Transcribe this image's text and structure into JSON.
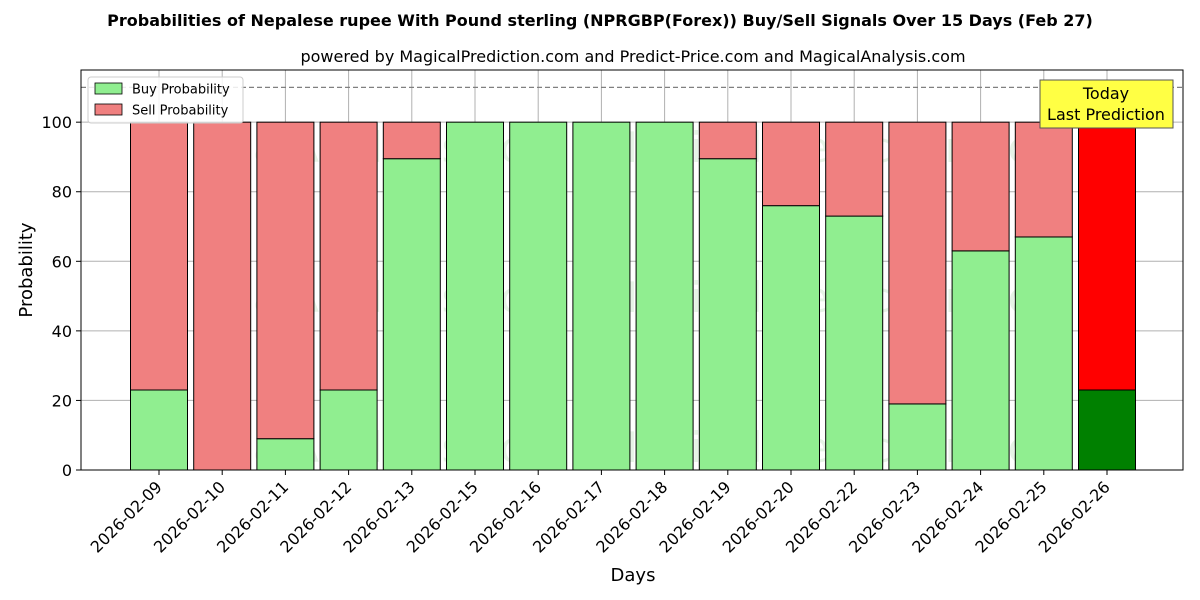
{
  "chart_data": {
    "type": "bar",
    "stacked": true,
    "title": "Probabilities of Nepalese rupee With Pound sterling (NPRGBP(Forex)) Buy/Sell Signals Over 15 Days (Feb 27)",
    "subtitle": "powered by MagicalPrediction.com and Predict-Price.com and MagicalAnalysis.com",
    "xlabel": "Days",
    "ylabel": "Probability",
    "ylim": [
      0,
      115
    ],
    "yticks": [
      0,
      20,
      40,
      60,
      80,
      100
    ],
    "grid": true,
    "legend_position": "top-left",
    "reference_line": 110,
    "categories": [
      "2026-02-09",
      "2026-02-10",
      "2026-02-11",
      "2026-02-12",
      "2026-02-13",
      "2026-02-15",
      "2026-02-16",
      "2026-02-17",
      "2026-02-18",
      "2026-02-19",
      "2026-02-20",
      "2026-02-22",
      "2026-02-23",
      "2026-02-24",
      "2026-02-25",
      "2026-02-26"
    ],
    "series": [
      {
        "name": "Buy Probability",
        "color": "#90ee90",
        "values": [
          23,
          0,
          9,
          23,
          89.5,
          100,
          100,
          100,
          100,
          89.5,
          76,
          73,
          19,
          63,
          67,
          23
        ]
      },
      {
        "name": "Sell Probability",
        "color": "#f08080",
        "values": [
          77,
          100,
          91,
          77,
          10.5,
          0,
          0,
          0,
          0,
          10.5,
          24,
          27,
          81,
          37,
          33,
          77
        ]
      }
    ],
    "highlight": {
      "index": 15,
      "buy_color": "#008000",
      "sell_color": "#ff0000"
    },
    "annotation": {
      "lines": [
        "Today",
        "Last Prediction"
      ],
      "background": "#ffff44"
    },
    "watermarks": [
      "MagicalAnalysis.com",
      "MagicalPrediction.com"
    ]
  }
}
